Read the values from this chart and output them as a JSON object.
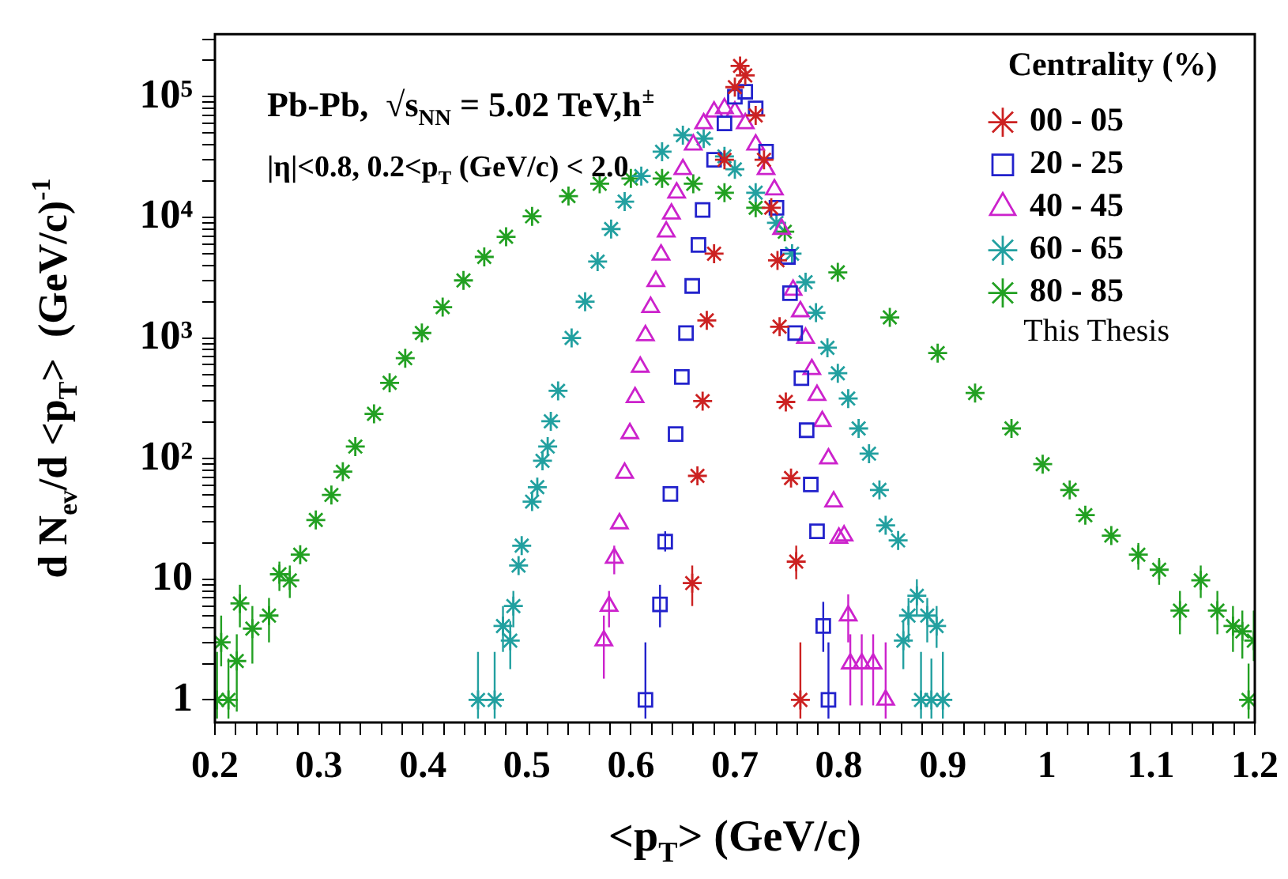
{
  "chart_data": {
    "type": "scatter",
    "title": "Pb-Pb,  √s$_{NN}$ = 5.02 TeV,h$^{±}$",
    "subtitle": "|η|<0.8, 0.2<p$_{T}$ (GeV/c) < 2.0",
    "xlabel": "<p$_{T}$> (GeV/c)",
    "ylabel": "d N$_{ev}$/d <p$_{T}$>  (GeV/c)$^{-1}$",
    "legend_title": "Centrality (%)",
    "legend": "top right",
    "annotations": [
      "This Thesis"
    ],
    "log": "y",
    "grid": false,
    "xlim": [
      0.2,
      1.2
    ],
    "ylim": [
      0.65,
      330000
    ],
    "xticks": [
      0.2,
      {
        "value": 0.22,
        "label": null
      },
      {
        "value": 0.24,
        "label": null
      },
      {
        "value": 0.26,
        "label": null
      },
      {
        "value": 0.28,
        "label": null
      },
      0.3,
      {
        "value": 0.32,
        "label": null
      },
      {
        "value": 0.34,
        "label": null
      },
      {
        "value": 0.36,
        "label": null
      },
      {
        "value": 0.38,
        "label": null
      },
      0.4,
      {
        "value": 0.42,
        "label": null
      },
      {
        "value": 0.44,
        "label": null
      },
      {
        "value": 0.46,
        "label": null
      },
      {
        "value": 0.48,
        "label": null
      },
      0.5,
      {
        "value": 0.52,
        "label": null
      },
      {
        "value": 0.54,
        "label": null
      },
      {
        "value": 0.56,
        "label": null
      },
      {
        "value": 0.58,
        "label": null
      },
      0.6,
      {
        "value": 0.62,
        "label": null
      },
      {
        "value": 0.64,
        "label": null
      },
      {
        "value": 0.66,
        "label": null
      },
      {
        "value": 0.68,
        "label": null
      },
      0.7,
      {
        "value": 0.72,
        "label": null
      },
      {
        "value": 0.74,
        "label": null
      },
      {
        "value": 0.76,
        "label": null
      },
      {
        "value": 0.78,
        "label": null
      },
      0.8,
      {
        "value": 0.82,
        "label": null
      },
      {
        "value": 0.84,
        "label": null
      },
      {
        "value": 0.86,
        "label": null
      },
      {
        "value": 0.88,
        "label": null
      },
      0.9,
      {
        "value": 0.92,
        "label": null
      },
      {
        "value": 0.94,
        "label": null
      },
      {
        "value": 0.96,
        "label": null
      },
      {
        "value": 0.98,
        "label": null
      },
      1,
      {
        "value": 1.02,
        "label": null
      },
      {
        "value": 1.04,
        "label": null
      },
      {
        "value": 1.06,
        "label": null
      },
      {
        "value": 1.08,
        "label": null
      },
      1.1,
      {
        "value": 1.12,
        "label": null
      },
      {
        "value": 1.14,
        "label": null
      },
      {
        "value": 1.16,
        "label": null
      },
      {
        "value": 1.18,
        "label": null
      },
      1.2
    ],
    "yticks": [
      1,
      {
        "value": 2,
        "label": null
      },
      {
        "value": 3,
        "label": null
      },
      {
        "value": 4,
        "label": null
      },
      {
        "value": 5,
        "label": null
      },
      {
        "value": 6,
        "label": null
      },
      {
        "value": 7,
        "label": null
      },
      {
        "value": 8,
        "label": null
      },
      {
        "value": 9,
        "label": null
      },
      10,
      {
        "value": 20,
        "label": null
      },
      {
        "value": 30,
        "label": null
      },
      {
        "value": 40,
        "label": null
      },
      {
        "value": 50,
        "label": null
      },
      {
        "value": 60,
        "label": null
      },
      {
        "value": 70,
        "label": null
      },
      {
        "value": 80,
        "label": null
      },
      {
        "value": 90,
        "label": null
      },
      {
        "value": 100,
        "label": "10²"
      },
      {
        "value": 200,
        "label": null
      },
      {
        "value": 300,
        "label": null
      },
      {
        "value": 400,
        "label": null
      },
      {
        "value": 500,
        "label": null
      },
      {
        "value": 600,
        "label": null
      },
      {
        "value": 700,
        "label": null
      },
      {
        "value": 800,
        "label": null
      },
      {
        "value": 900,
        "label": null
      },
      {
        "value": 1000,
        "label": "10³"
      },
      {
        "value": 2000,
        "label": null
      },
      {
        "value": 3000,
        "label": null
      },
      {
        "value": 4000,
        "label": null
      },
      {
        "value": 5000,
        "label": null
      },
      {
        "value": 6000,
        "label": null
      },
      {
        "value": 7000,
        "label": null
      },
      {
        "value": 8000,
        "label": null
      },
      {
        "value": 9000,
        "label": null
      },
      {
        "value": 10000,
        "label": "10⁴"
      },
      {
        "value": 20000,
        "label": null
      },
      {
        "value": 30000,
        "label": null
      },
      {
        "value": 40000,
        "label": null
      },
      {
        "value": 50000,
        "label": null
      },
      {
        "value": 60000,
        "label": null
      },
      {
        "value": 70000,
        "label": null
      },
      {
        "value": 80000,
        "label": null
      },
      {
        "value": 90000,
        "label": null
      },
      {
        "value": 100000,
        "label": "10⁵"
      },
      {
        "value": 200000,
        "label": null
      },
      {
        "value": 300000,
        "label": null
      }
    ],
    "series": [
      {
        "name": "00 - 05",
        "color": "#cc2222",
        "marker": "cross",
        "x": [
          0.659,
          0.664,
          0.669,
          0.673,
          0.68,
          0.69,
          0.7,
          0.705,
          0.71,
          0.72,
          0.728,
          0.735,
          0.741,
          0.743,
          0.749,
          0.754,
          0.759,
          0.763
        ],
        "values": [
          9.3,
          72,
          300,
          1400,
          5000,
          30000,
          120000,
          180000,
          150000,
          70000,
          30000,
          12000,
          4400,
          1240,
          295,
          69,
          14,
          1
        ],
        "errors": [
          [
            6,
            13
          ],
          null,
          null,
          null,
          null,
          null,
          null,
          null,
          null,
          null,
          null,
          null,
          null,
          null,
          null,
          null,
          [
            10,
            19
          ],
          [
            0.7,
            3
          ]
        ]
      },
      {
        "name": "20 - 25",
        "color": "#2222cc",
        "marker": "square",
        "x": [
          0.614,
          0.628,
          0.633,
          0.638,
          0.643,
          0.649,
          0.653,
          0.659,
          0.665,
          0.669,
          0.68,
          0.69,
          0.7,
          0.71,
          0.72,
          0.73,
          0.74,
          0.751,
          0.753,
          0.758,
          0.764,
          0.769,
          0.773,
          0.779,
          0.785,
          0.79
        ],
        "values": [
          1,
          6.2,
          20.5,
          51,
          160,
          475,
          1100,
          2700,
          5900,
          11500,
          30000,
          60000,
          100000,
          110000,
          80000,
          35000,
          12000,
          4700,
          2350,
          1100,
          465,
          172,
          61,
          25,
          4.1,
          1
        ],
        "errors": [
          [
            0.7,
            3
          ],
          [
            4,
            9
          ],
          [
            17,
            25
          ],
          null,
          null,
          null,
          null,
          null,
          null,
          null,
          null,
          null,
          null,
          null,
          null,
          null,
          null,
          null,
          null,
          null,
          null,
          null,
          null,
          null,
          [
            2.5,
            6.5
          ],
          [
            0.7,
            3
          ]
        ]
      },
      {
        "name": "40 - 45",
        "color": "#cc22cc",
        "marker": "triangle",
        "x": [
          0.574,
          0.579,
          0.584,
          0.589,
          0.594,
          0.599,
          0.604,
          0.609,
          0.614,
          0.619,
          0.624,
          0.629,
          0.634,
          0.639,
          0.644,
          0.65,
          0.66,
          0.67,
          0.68,
          0.69,
          0.7,
          0.71,
          0.72,
          0.73,
          0.738,
          0.745,
          0.75,
          0.756,
          0.763,
          0.768,
          0.774,
          0.779,
          0.784,
          0.79,
          0.795,
          0.8,
          0.805,
          0.809,
          0.811,
          0.822,
          0.833,
          0.845
        ],
        "values": [
          3.1,
          6,
          15,
          29,
          76,
          162,
          322,
          575,
          1050,
          1800,
          2950,
          4900,
          7600,
          10700,
          16000,
          25000,
          40000,
          60000,
          75000,
          80000,
          75000,
          60000,
          40000,
          25000,
          17000,
          8000,
          null,
          2500,
          1660,
          1000,
          550,
          336,
          204,
          100,
          44,
          22,
          23,
          5,
          2,
          2,
          2,
          1
        ],
        "errors": [
          [
            1.5,
            5
          ],
          [
            4,
            8
          ],
          [
            11,
            19
          ],
          null,
          null,
          null,
          null,
          null,
          null,
          null,
          null,
          null,
          null,
          null,
          null,
          null,
          null,
          null,
          null,
          null,
          null,
          null,
          null,
          null,
          null,
          null,
          null,
          null,
          null,
          null,
          null,
          null,
          null,
          null,
          null,
          null,
          null,
          [
            3,
            7.5
          ],
          [
            0.9,
            3.5
          ],
          [
            0.9,
            3.5
          ],
          [
            0.9,
            3.5
          ],
          [
            0.7,
            3
          ]
        ]
      },
      {
        "name": "60 - 65",
        "color": "#22a0a0",
        "marker": "cross",
        "x": [
          0.453,
          0.469,
          0.477,
          0.484,
          0.487,
          0.492,
          0.495,
          0.505,
          0.51,
          0.515,
          0.52,
          0.523,
          0.53,
          0.543,
          0.556,
          0.568,
          0.581,
          0.594,
          0.61,
          0.63,
          0.65,
          0.67,
          0.69,
          0.7,
          0.72,
          0.74,
          0.755,
          0.768,
          0.778,
          0.789,
          0.799,
          0.809,
          0.819,
          0.829,
          0.839,
          0.845,
          0.857,
          0.862,
          0.867,
          0.875,
          0.879,
          0.885,
          0.889,
          0.894,
          0.9
        ],
        "values": [
          1,
          1,
          4.1,
          3.1,
          6,
          13,
          19,
          44,
          58,
          96,
          126,
          204,
          365,
          1000,
          2000,
          4300,
          8000,
          13500,
          22000,
          35000,
          48000,
          45000,
          32000,
          25000,
          16000,
          9000,
          5000,
          2900,
          1620,
          830,
          510,
          315,
          178,
          110,
          55,
          28,
          21,
          3.1,
          5,
          7.3,
          1,
          5,
          1,
          4.1,
          1
        ],
        "errors": [
          [
            0.7,
            2.5
          ],
          [
            0.7,
            2.5
          ],
          [
            2.5,
            6
          ],
          [
            1.8,
            4.5
          ],
          [
            4,
            8
          ],
          null,
          null,
          null,
          null,
          null,
          null,
          null,
          null,
          null,
          null,
          null,
          null,
          null,
          null,
          null,
          null,
          null,
          null,
          null,
          null,
          null,
          null,
          null,
          null,
          null,
          null,
          null,
          null,
          null,
          null,
          null,
          null,
          [
            1.8,
            4.5
          ],
          [
            3,
            7
          ],
          [
            5,
            10
          ],
          [
            0.7,
            2.5
          ],
          [
            3,
            7
          ],
          [
            0.7,
            2.2
          ],
          [
            2.7,
            6
          ],
          [
            0.7,
            2.5
          ]
        ]
      },
      {
        "name": "80 - 85",
        "color": "#22a022",
        "marker": "cross",
        "x": [
          0.202,
          0.206,
          0.213,
          0.221,
          0.224,
          0.236,
          0.252,
          0.262,
          0.272,
          0.282,
          0.297,
          0.312,
          0.323,
          0.335,
          0.353,
          0.368,
          0.383,
          0.399,
          0.419,
          0.439,
          0.459,
          0.48,
          0.505,
          0.54,
          0.57,
          0.6,
          0.63,
          0.66,
          0.69,
          0.72,
          0.748,
          0.799,
          0.849,
          0.895,
          0.931,
          0.966,
          0.996,
          1.022,
          1.037,
          1.062,
          1.088,
          1.108,
          1.128,
          1.148,
          1.164,
          1.179,
          1.188,
          1.194,
          1.199
        ],
        "values": [
          1,
          3,
          1,
          2.1,
          6.3,
          3.9,
          5,
          11,
          9.8,
          16,
          31,
          50,
          78,
          126,
          235,
          425,
          680,
          1100,
          1800,
          3000,
          4700,
          6900,
          10200,
          15000,
          19000,
          21000,
          21000,
          19000,
          16000,
          12000,
          7600,
          3500,
          1480,
          750,
          350,
          178,
          90,
          55,
          34,
          23,
          16,
          12,
          5.5,
          9.8,
          5.5,
          4.1,
          3.7,
          1,
          3.1
        ],
        "errors": [
          [
            0.7,
            2.5
          ],
          [
            1.9,
            5
          ],
          [
            0.7,
            2.2
          ],
          [
            0.8,
            3.5
          ],
          [
            4,
            9
          ],
          [
            2,
            6
          ],
          [
            3,
            7
          ],
          [
            8,
            14
          ],
          [
            7,
            13
          ],
          null,
          null,
          null,
          null,
          null,
          null,
          null,
          null,
          null,
          null,
          null,
          null,
          null,
          null,
          null,
          null,
          null,
          null,
          null,
          null,
          null,
          null,
          null,
          null,
          null,
          null,
          null,
          null,
          null,
          null,
          null,
          [
            12,
            20
          ],
          [
            9,
            15
          ],
          [
            3.5,
            8
          ],
          [
            7,
            13
          ],
          [
            3.5,
            8
          ],
          [
            2.5,
            6
          ],
          [
            2.2,
            5.5
          ],
          [
            0.7,
            2
          ],
          [
            2.1,
            5.5
          ]
        ]
      }
    ]
  }
}
